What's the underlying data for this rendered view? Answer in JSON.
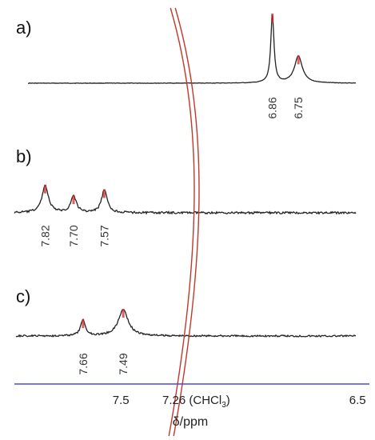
{
  "chart_data": {
    "type": "line",
    "xlabel": "δ/ppm",
    "xlim": [
      7.95,
      6.45
    ],
    "x_reversed": true,
    "axis_color": "#4a4adb",
    "peak_marker_color": "#d42b2b",
    "solvent_line_color": "#c0392b",
    "x_ticks": [
      {
        "value": 7.5,
        "label": "7.5"
      },
      {
        "value": 6.5,
        "label": "6.5"
      }
    ],
    "solvent_marker": {
      "value": 7.26,
      "label_prefix": "7.26 (CHCl",
      "label_sub": "3",
      "label_suffix": ")"
    },
    "spectra": [
      {
        "label": "a)",
        "peaks": [
          {
            "ppm": 6.86,
            "label": "6.86",
            "height": 0.82,
            "width": 0.008
          },
          {
            "ppm": 6.75,
            "label": "6.75",
            "height": 0.32,
            "width": 0.02
          }
        ]
      },
      {
        "label": "b)",
        "peaks": [
          {
            "ppm": 7.82,
            "label": "7.82",
            "height": 0.36,
            "width": 0.016
          },
          {
            "ppm": 7.7,
            "label": "7.70",
            "height": 0.22,
            "width": 0.014
          },
          {
            "ppm": 7.57,
            "label": "7.57",
            "height": 0.3,
            "width": 0.014
          }
        ]
      },
      {
        "label": "c)",
        "peaks": [
          {
            "ppm": 7.66,
            "label": "7.66",
            "height": 0.18,
            "width": 0.012
          },
          {
            "ppm": 7.49,
            "label": "7.49",
            "height": 0.3,
            "width": 0.025
          }
        ]
      }
    ]
  }
}
